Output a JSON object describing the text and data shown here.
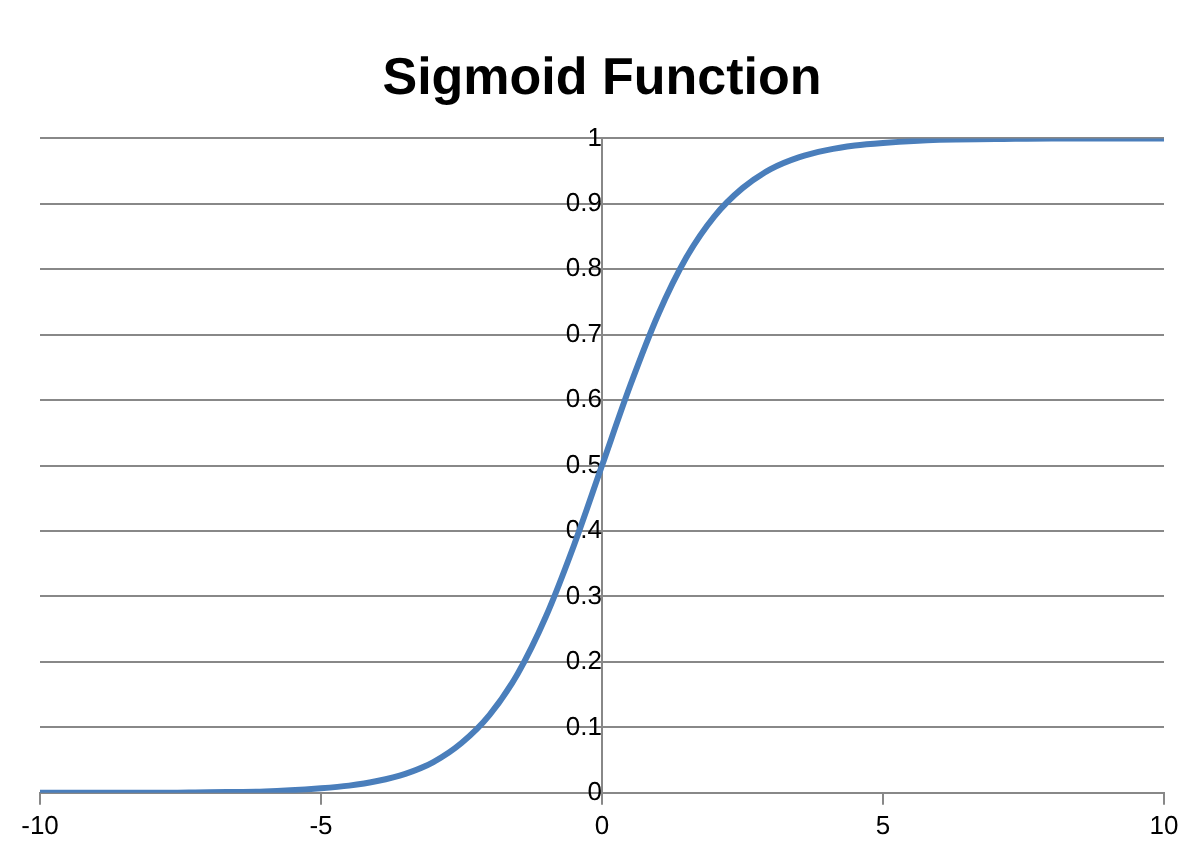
{
  "chart_data": {
    "type": "line",
    "title": "Sigmoid Function",
    "x": [
      -10,
      -9,
      -8,
      -7,
      -6,
      -5,
      -4.5,
      -4,
      -3.5,
      -3,
      -2.5,
      -2,
      -1.5,
      -1,
      -0.5,
      0,
      0.5,
      1,
      1.5,
      2,
      2.5,
      3,
      3.5,
      4,
      4.5,
      5,
      6,
      7,
      8,
      9,
      10
    ],
    "series": [
      {
        "color": "#4a7ebb",
        "values": [
          0,
          0,
          0,
          0.001,
          0.002,
          0.007,
          0.011,
          0.018,
          0.029,
          0.047,
          0.076,
          0.119,
          0.182,
          0.269,
          0.378,
          0.5,
          0.622,
          0.731,
          0.818,
          0.881,
          0.924,
          0.953,
          0.971,
          0.982,
          0.989,
          0.993,
          0.998,
          0.999,
          1,
          1,
          1
        ]
      }
    ],
    "xlim": [
      -10,
      10
    ],
    "xticks": [
      -10,
      -5,
      0,
      5,
      10
    ],
    "ylim": [
      0,
      1
    ],
    "yticks": [
      0,
      0.1,
      0.2,
      0.3,
      0.4,
      0.5,
      0.6,
      0.7,
      0.8,
      0.9,
      1
    ],
    "grid": "y",
    "legend": false,
    "marker": "none",
    "line_style": "solid"
  }
}
